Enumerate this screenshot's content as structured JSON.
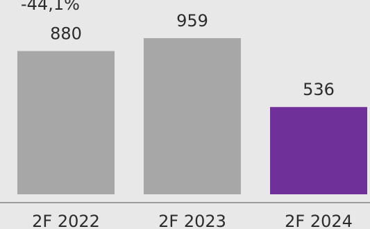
{
  "chart_data": {
    "type": "bar",
    "categories": [
      "2F 2022",
      "2F 2023",
      "2F 2024"
    ],
    "values": [
      880,
      959,
      536
    ],
    "value_labels": [
      "880",
      "959",
      "536"
    ],
    "annotation": "-44,1%",
    "ylim": [
      0,
      959
    ],
    "grid": false,
    "colors": {
      "bar_default": "#a7a7a7",
      "bar_highlight": "#70309a",
      "axis": "#9a9a9a",
      "background": "#e8e8e8"
    },
    "highlight_index": 2
  }
}
